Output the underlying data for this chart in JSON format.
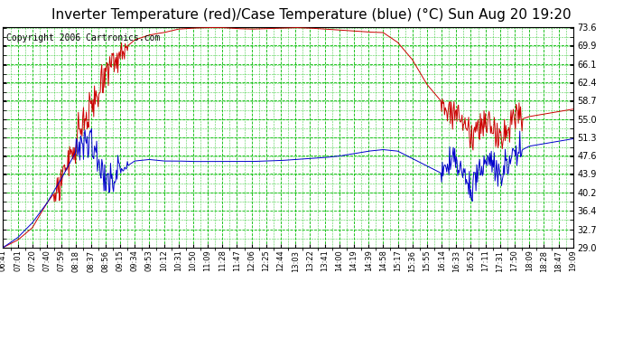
{
  "title": "Inverter Temperature (red)/Case Temperature (blue) (°C) Sun Aug 20 19:20",
  "copyright": "Copyright 2006 Cartronics.com",
  "yticks": [
    29.0,
    32.7,
    36.4,
    40.2,
    43.9,
    47.6,
    51.3,
    55.0,
    58.7,
    62.4,
    66.1,
    69.9,
    73.6
  ],
  "ylim": [
    29.0,
    73.6
  ],
  "xtick_labels": [
    "06:41",
    "07:01",
    "07:20",
    "07:40",
    "07:59",
    "08:18",
    "08:37",
    "08:56",
    "09:15",
    "09:34",
    "09:53",
    "10:12",
    "10:31",
    "10:50",
    "11:09",
    "11:28",
    "11:47",
    "12:06",
    "12:25",
    "12:44",
    "13:03",
    "13:22",
    "13:41",
    "14:00",
    "14:19",
    "14:39",
    "14:58",
    "15:17",
    "15:36",
    "15:55",
    "16:14",
    "16:33",
    "16:52",
    "17:11",
    "17:31",
    "17:50",
    "18:09",
    "18:28",
    "18:47",
    "19:09"
  ],
  "background_color": "#ffffff",
  "plot_bg_color": "#ffffff",
  "grid_color": "#00bb00",
  "red_color": "#cc0000",
  "blue_color": "#0000cc",
  "title_fontsize": 11,
  "copyright_fontsize": 7
}
